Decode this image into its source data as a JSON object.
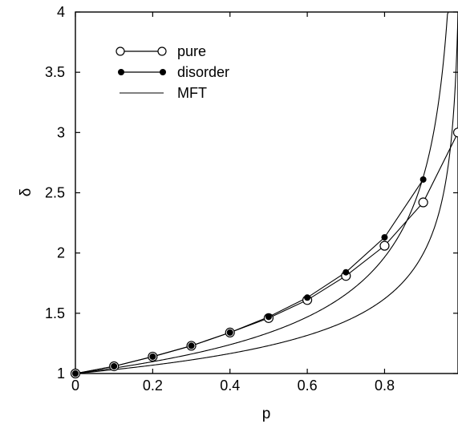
{
  "chart_data": {
    "type": "line",
    "xlabel": "p",
    "ylabel": "δ",
    "xlim": [
      0,
      0.99
    ],
    "ylim": [
      1,
      4
    ],
    "x_ticks": [
      "0",
      "0.2",
      "0.4",
      "0.6",
      "0.8"
    ],
    "x_tick_values": [
      0,
      0.2,
      0.4,
      0.6,
      0.8
    ],
    "y_ticks": [
      "1",
      "1.5",
      "2",
      "2.5",
      "3",
      "3.5",
      "4"
    ],
    "y_tick_values": [
      1,
      1.5,
      2,
      2.5,
      3,
      3.5,
      4
    ],
    "grid": false,
    "legend_position": "top-left",
    "series": [
      {
        "name": "pure",
        "marker": "open-circle",
        "x": [
          0,
          0.1,
          0.2,
          0.3,
          0.4,
          0.5,
          0.6,
          0.7,
          0.8,
          0.9,
          0.99
        ],
        "y": [
          1.0,
          1.06,
          1.14,
          1.23,
          1.34,
          1.46,
          1.61,
          1.81,
          2.06,
          2.42,
          3.0
        ]
      },
      {
        "name": "disorder",
        "marker": "filled-circle",
        "x": [
          0,
          0.1,
          0.2,
          0.3,
          0.4,
          0.5,
          0.6,
          0.7,
          0.8,
          0.9
        ],
        "y": [
          1.0,
          1.06,
          1.14,
          1.23,
          1.34,
          1.47,
          1.63,
          1.84,
          2.13,
          2.61
        ]
      },
      {
        "name": "MFT",
        "marker": "none",
        "formula": "1/(1-p)^0.3",
        "x": [
          0,
          0.1,
          0.2,
          0.3,
          0.4,
          0.5,
          0.6,
          0.7,
          0.8,
          0.9,
          0.99
        ],
        "y": [
          1.0,
          1.03,
          1.07,
          1.11,
          1.17,
          1.23,
          1.32,
          1.44,
          1.62,
          2.0,
          3.98
        ]
      }
    ]
  }
}
